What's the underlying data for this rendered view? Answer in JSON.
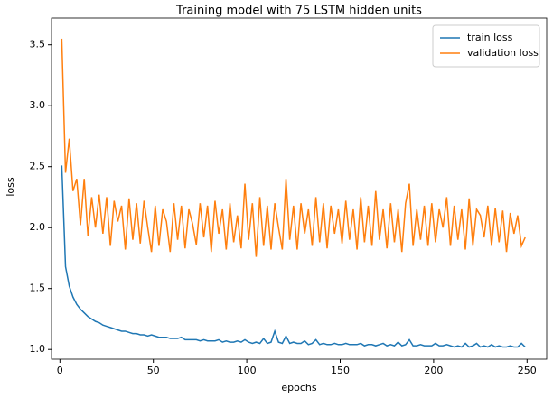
{
  "chart_data": {
    "type": "line",
    "title": "Training model with 75 LSTM hidden units",
    "xlabel": "epochs",
    "ylabel": "loss",
    "x": [
      1,
      3,
      5,
      7,
      9,
      11,
      13,
      15,
      17,
      19,
      21,
      23,
      25,
      27,
      29,
      31,
      33,
      35,
      37,
      39,
      41,
      43,
      45,
      47,
      49,
      51,
      53,
      55,
      57,
      59,
      61,
      63,
      65,
      67,
      69,
      71,
      73,
      75,
      77,
      79,
      81,
      83,
      85,
      87,
      89,
      91,
      93,
      95,
      97,
      99,
      101,
      103,
      105,
      107,
      109,
      111,
      113,
      115,
      117,
      119,
      121,
      123,
      125,
      127,
      129,
      131,
      133,
      135,
      137,
      139,
      141,
      143,
      145,
      147,
      149,
      151,
      153,
      155,
      157,
      159,
      161,
      163,
      165,
      167,
      169,
      171,
      173,
      175,
      177,
      179,
      181,
      183,
      185,
      187,
      189,
      191,
      193,
      195,
      197,
      199,
      201,
      203,
      205,
      207,
      209,
      211,
      213,
      215,
      217,
      219,
      221,
      223,
      225,
      227,
      229,
      231,
      233,
      235,
      237,
      239,
      241,
      243,
      245,
      247,
      249
    ],
    "series": [
      {
        "name": "train loss",
        "color": "#1f77b4",
        "values": [
          2.51,
          1.68,
          1.52,
          1.43,
          1.37,
          1.33,
          1.3,
          1.27,
          1.25,
          1.23,
          1.22,
          1.2,
          1.19,
          1.18,
          1.17,
          1.16,
          1.15,
          1.15,
          1.14,
          1.13,
          1.13,
          1.12,
          1.12,
          1.11,
          1.12,
          1.11,
          1.1,
          1.1,
          1.1,
          1.09,
          1.09,
          1.09,
          1.1,
          1.08,
          1.08,
          1.08,
          1.08,
          1.07,
          1.08,
          1.07,
          1.07,
          1.07,
          1.08,
          1.06,
          1.07,
          1.06,
          1.06,
          1.07,
          1.06,
          1.08,
          1.06,
          1.05,
          1.06,
          1.05,
          1.09,
          1.05,
          1.06,
          1.15,
          1.06,
          1.05,
          1.11,
          1.05,
          1.06,
          1.05,
          1.05,
          1.07,
          1.04,
          1.05,
          1.08,
          1.04,
          1.05,
          1.04,
          1.04,
          1.05,
          1.04,
          1.04,
          1.05,
          1.04,
          1.04,
          1.04,
          1.05,
          1.03,
          1.04,
          1.04,
          1.03,
          1.04,
          1.05,
          1.03,
          1.04,
          1.03,
          1.06,
          1.03,
          1.04,
          1.08,
          1.03,
          1.03,
          1.04,
          1.03,
          1.03,
          1.03,
          1.05,
          1.03,
          1.03,
          1.04,
          1.03,
          1.02,
          1.03,
          1.02,
          1.05,
          1.02,
          1.03,
          1.05,
          1.02,
          1.03,
          1.02,
          1.04,
          1.02,
          1.03,
          1.02,
          1.02,
          1.03,
          1.02,
          1.02,
          1.05,
          1.02
        ]
      },
      {
        "name": "validation loss",
        "color": "#ff7f0e",
        "values": [
          3.55,
          2.45,
          2.73,
          2.3,
          2.4,
          2.02,
          2.4,
          1.93,
          2.25,
          2.0,
          2.27,
          1.95,
          2.25,
          1.85,
          2.22,
          2.05,
          2.18,
          1.82,
          2.24,
          1.9,
          2.2,
          1.87,
          2.22,
          2.0,
          1.8,
          2.18,
          1.85,
          2.15,
          2.05,
          1.8,
          2.2,
          1.9,
          2.18,
          1.83,
          2.15,
          2.03,
          1.86,
          2.2,
          1.92,
          2.18,
          1.8,
          2.22,
          1.95,
          2.15,
          1.82,
          2.2,
          1.88,
          2.1,
          1.83,
          2.36,
          1.9,
          2.2,
          1.76,
          2.25,
          1.85,
          2.18,
          1.82,
          2.2,
          2.0,
          1.82,
          2.4,
          1.9,
          2.18,
          1.82,
          2.2,
          1.95,
          2.15,
          1.85,
          2.25,
          1.88,
          2.2,
          1.83,
          2.18,
          1.95,
          2.15,
          1.87,
          2.22,
          1.9,
          2.15,
          1.82,
          2.25,
          1.88,
          2.18,
          1.85,
          2.3,
          1.9,
          2.15,
          1.83,
          2.2,
          1.88,
          2.15,
          1.8,
          2.2,
          2.36,
          1.85,
          2.15,
          1.9,
          2.18,
          1.85,
          2.2,
          1.88,
          2.15,
          2.0,
          2.25,
          1.85,
          2.18,
          1.9,
          2.15,
          1.82,
          2.24,
          1.85,
          2.15,
          2.1,
          1.92,
          2.18,
          1.85,
          2.16,
          1.88,
          2.14,
          1.8,
          2.12,
          1.95,
          2.1,
          1.85,
          1.92
        ]
      }
    ],
    "xlim": [
      -4.5,
      260.5
    ],
    "ylim": [
      0.92,
      3.72
    ],
    "xticks": [
      0,
      50,
      100,
      150,
      200,
      250
    ],
    "yticks": [
      {
        "value": 1,
        "label": "1.0"
      },
      1.5,
      {
        "value": 2,
        "label": "2.0"
      },
      2.5,
      {
        "value": 3,
        "label": "3.0"
      },
      3.5
    ],
    "legend": "upper right",
    "grid": false
  }
}
